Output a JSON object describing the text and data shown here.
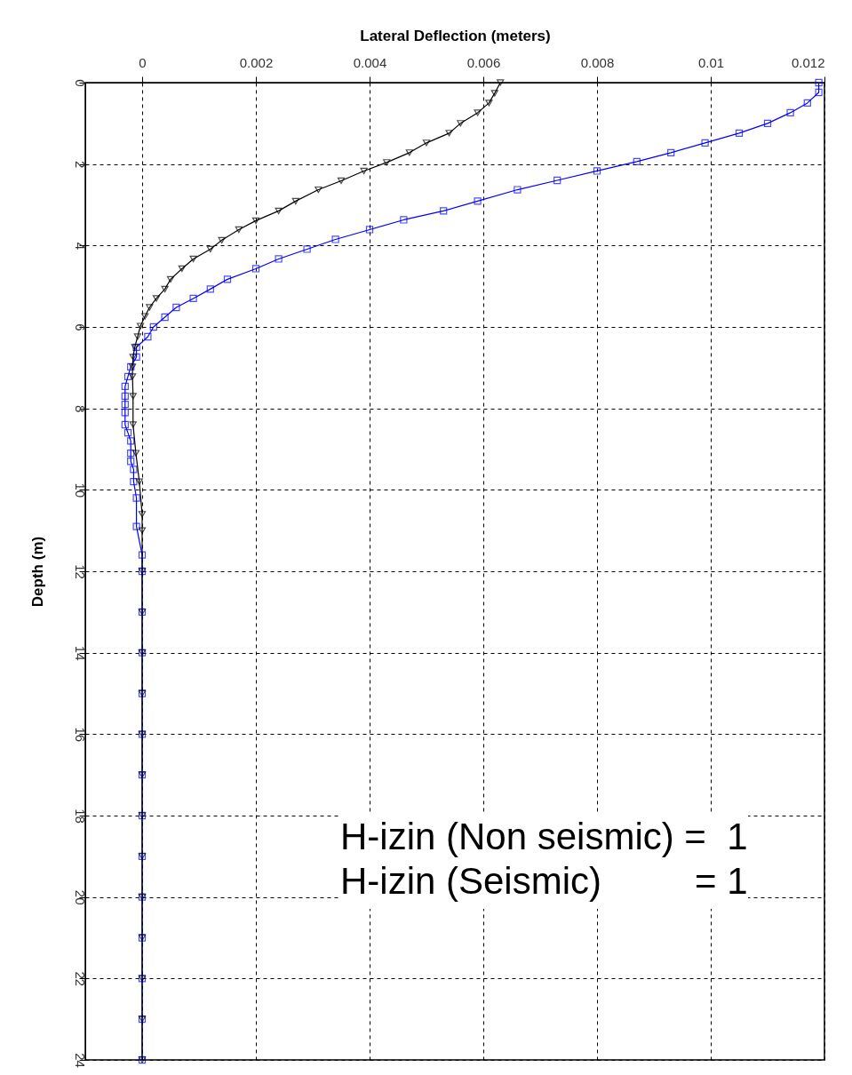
{
  "chart_data": {
    "type": "line",
    "xlabel": "Lateral Deflection (meters)",
    "ylabel": "Depth (m)",
    "xlim": [
      -0.001,
      0.012
    ],
    "xticks": [
      0,
      0.002,
      0.004,
      0.006,
      0.008,
      0.01,
      0.012
    ],
    "ylim": [
      24,
      0
    ],
    "yticks": [
      0,
      2,
      4,
      6,
      8,
      10,
      12,
      14,
      16,
      18,
      20,
      22,
      24
    ],
    "grid": true,
    "line_style": "solid",
    "annotations": [
      "H-izin (Non seismic) =  1",
      "H-izin (Seismic)         = 1"
    ],
    "series": [
      {
        "color": "#0000ff",
        "marker": "square",
        "x": [
          0.0119,
          0.0119,
          0.0117,
          0.0114,
          0.011,
          0.0105,
          0.0099,
          0.0093,
          0.0087,
          0.008,
          0.0073,
          0.0066,
          0.0059,
          0.0053,
          0.0046,
          0.004,
          0.0034,
          0.0029,
          0.0024,
          0.002,
          0.0015,
          0.0012,
          0.0009,
          0.0006,
          0.0004,
          0.0002,
          0.0001,
          -0.0001,
          -0.0001,
          -0.0002,
          -0.00025,
          -0.0003,
          -0.0003,
          -0.0003,
          -0.0003,
          -0.0003,
          -0.00025,
          -0.0002,
          -0.0002,
          -0.0002,
          -0.00015,
          -0.00015,
          -0.0001,
          -0.0001,
          0,
          0,
          0,
          0,
          0,
          0,
          0,
          0,
          0,
          0,
          0,
          0,
          0,
          0
        ],
        "values": [
          0,
          0.24,
          0.5,
          0.74,
          1.0,
          1.24,
          1.48,
          1.72,
          1.94,
          2.17,
          2.4,
          2.63,
          2.91,
          3.15,
          3.37,
          3.61,
          3.85,
          4.09,
          4.33,
          4.57,
          4.83,
          5.07,
          5.3,
          5.52,
          5.76,
          6.0,
          6.24,
          6.5,
          6.74,
          6.98,
          7.22,
          7.46,
          7.7,
          7.9,
          8.1,
          8.4,
          8.6,
          8.8,
          9.1,
          9.3,
          9.5,
          9.8,
          10.2,
          10.9,
          11.6,
          12,
          13,
          14,
          15,
          16,
          17,
          18,
          19,
          20,
          21,
          22,
          23,
          24
        ]
      },
      {
        "color": "#000000",
        "marker": "triangle",
        "x": [
          0.0063,
          0.0062,
          0.0061,
          0.0059,
          0.0056,
          0.0054,
          0.005,
          0.0047,
          0.0043,
          0.0039,
          0.0035,
          0.0031,
          0.0027,
          0.0024,
          0.002,
          0.0017,
          0.0014,
          0.0012,
          0.0009,
          0.0007,
          0.0005,
          0.0004,
          0.00025,
          0.00013,
          5e-05,
          -3e-05,
          -8e-05,
          -0.00013,
          -0.00016,
          -0.00017,
          -0.00017,
          -0.00016,
          -0.00016,
          -0.00011,
          -5e-05,
          0,
          0,
          0,
          0,
          0,
          0,
          0,
          0,
          0,
          0,
          0,
          0,
          0,
          0,
          0
        ],
        "values": [
          0,
          0.26,
          0.5,
          0.74,
          1.0,
          1.24,
          1.48,
          1.72,
          1.96,
          2.17,
          2.41,
          2.63,
          2.91,
          3.15,
          3.39,
          3.61,
          3.87,
          4.09,
          4.33,
          4.57,
          4.83,
          5.07,
          5.3,
          5.52,
          5.74,
          5.98,
          6.24,
          6.5,
          6.74,
          6.98,
          7.22,
          7.7,
          8.4,
          9.1,
          9.8,
          10.6,
          11,
          12,
          13,
          14,
          15,
          16,
          17,
          18,
          19,
          20,
          21,
          22,
          23,
          24
        ]
      }
    ]
  }
}
